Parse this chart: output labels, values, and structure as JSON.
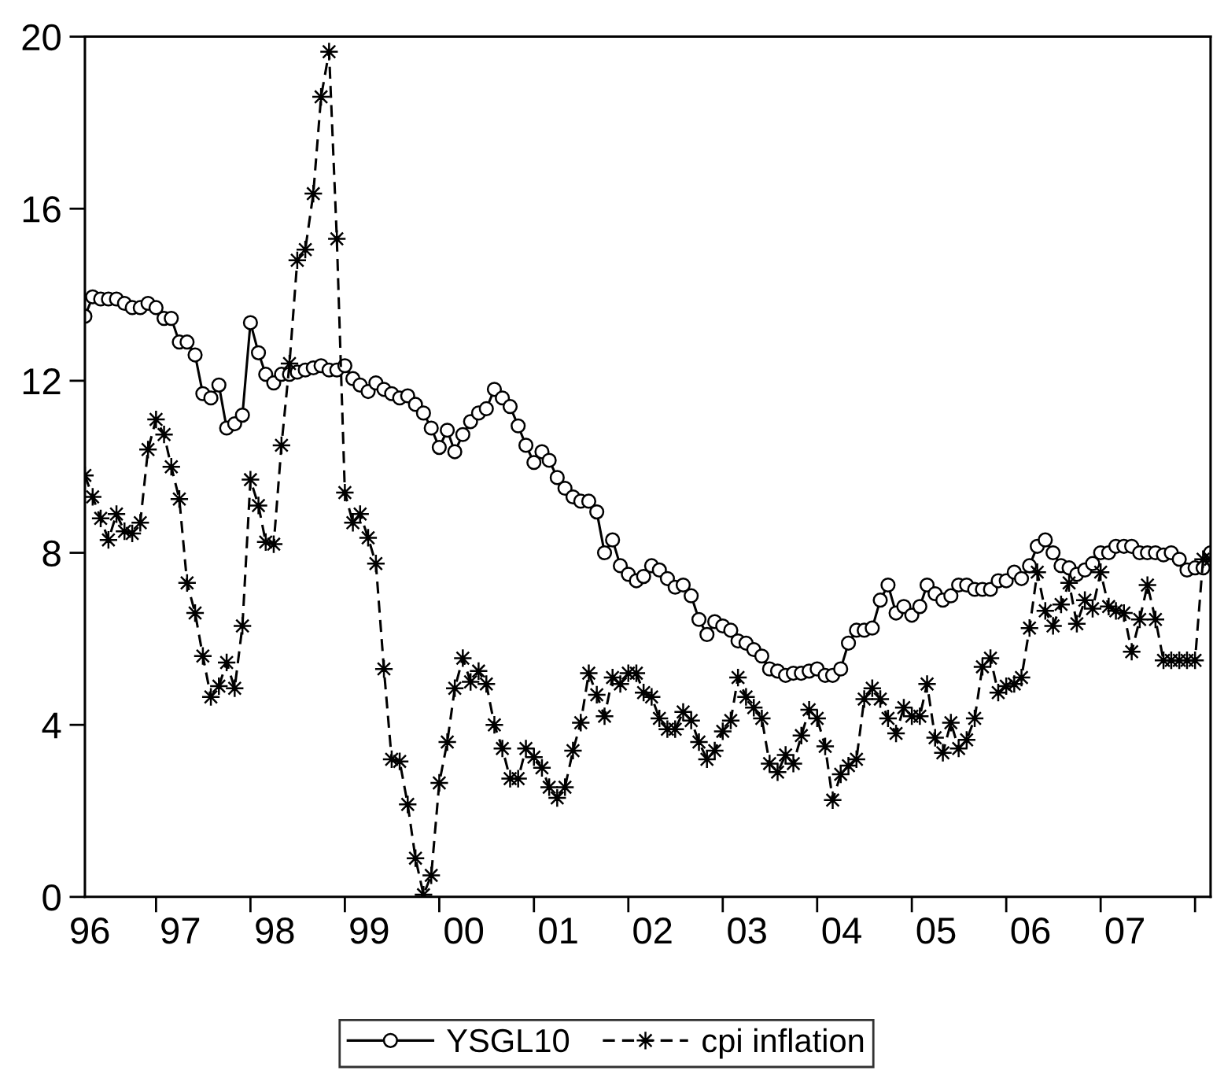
{
  "chart_data": {
    "type": "line",
    "x": [
      "1996-04",
      "1996-05",
      "1996-06",
      "1996-07",
      "1996-08",
      "1996-09",
      "1996-10",
      "1996-11",
      "1996-12",
      "1997-01",
      "1997-02",
      "1997-03",
      "1997-04",
      "1997-05",
      "1997-06",
      "1997-07",
      "1997-08",
      "1997-09",
      "1997-10",
      "1997-11",
      "1997-12",
      "1998-01",
      "1998-02",
      "1998-03",
      "1998-04",
      "1998-05",
      "1998-06",
      "1998-07",
      "1998-08",
      "1998-09",
      "1998-10",
      "1998-11",
      "1998-12",
      "1999-01",
      "1999-02",
      "1999-03",
      "1999-04",
      "1999-05",
      "1999-06",
      "1999-07",
      "1999-08",
      "1999-09",
      "1999-10",
      "1999-11",
      "1999-12",
      "2000-01",
      "2000-02",
      "2000-03",
      "2000-04",
      "2000-05",
      "2000-06",
      "2000-07",
      "2000-08",
      "2000-09",
      "2000-10",
      "2000-11",
      "2000-12",
      "2001-01",
      "2001-02",
      "2001-03",
      "2001-04",
      "2001-05",
      "2001-06",
      "2001-07",
      "2001-08",
      "2001-09",
      "2001-10",
      "2001-11",
      "2001-12",
      "2002-01",
      "2002-02",
      "2002-03",
      "2002-04",
      "2002-05",
      "2002-06",
      "2002-07",
      "2002-08",
      "2002-09",
      "2002-10",
      "2002-11",
      "2002-12",
      "2003-01",
      "2003-02",
      "2003-03",
      "2003-04",
      "2003-05",
      "2003-06",
      "2003-07",
      "2003-08",
      "2003-09",
      "2003-10",
      "2003-11",
      "2003-12",
      "2004-01",
      "2004-02",
      "2004-03",
      "2004-04",
      "2004-05",
      "2004-06",
      "2004-07",
      "2004-08",
      "2004-09",
      "2004-10",
      "2004-11",
      "2004-12",
      "2005-01",
      "2005-02",
      "2005-03",
      "2005-04",
      "2005-05",
      "2005-06",
      "2005-07",
      "2005-08",
      "2005-09",
      "2005-10",
      "2005-11",
      "2005-12",
      "2006-01",
      "2006-02",
      "2006-03",
      "2006-04",
      "2006-05",
      "2006-06",
      "2006-07",
      "2006-08",
      "2006-09",
      "2006-10",
      "2006-11",
      "2006-12",
      "2007-01",
      "2007-02",
      "2007-03",
      "2007-04",
      "2007-05",
      "2007-06",
      "2007-07",
      "2007-08",
      "2007-09",
      "2007-10",
      "2007-11",
      "2007-12",
      "2008-01",
      "2008-02",
      "2008-03"
    ],
    "series": [
      {
        "name": "YSGL10",
        "color": "#000000",
        "marker": "circle",
        "line_style": "solid",
        "values": [
          13.5,
          13.95,
          13.9,
          13.9,
          13.9,
          13.8,
          13.7,
          13.7,
          13.8,
          13.7,
          13.45,
          13.45,
          12.9,
          12.9,
          12.6,
          11.7,
          11.6,
          11.9,
          10.9,
          11.0,
          11.2,
          13.35,
          12.65,
          12.15,
          11.95,
          12.15,
          12.15,
          12.2,
          12.25,
          12.3,
          12.35,
          12.25,
          12.25,
          12.35,
          12.05,
          11.9,
          11.75,
          11.95,
          11.8,
          11.7,
          11.6,
          11.65,
          11.45,
          11.25,
          10.9,
          10.45,
          10.85,
          10.35,
          10.75,
          11.05,
          11.25,
          11.35,
          11.8,
          11.6,
          11.4,
          10.95,
          10.5,
          10.1,
          10.35,
          10.15,
          9.75,
          9.5,
          9.3,
          9.2,
          9.2,
          8.95,
          8.0,
          8.3,
          7.7,
          7.5,
          7.35,
          7.45,
          7.7,
          7.6,
          7.4,
          7.2,
          7.25,
          7.0,
          6.45,
          6.1,
          6.4,
          6.3,
          6.2,
          5.95,
          5.9,
          5.75,
          5.6,
          5.3,
          5.25,
          5.15,
          5.2,
          5.2,
          5.25,
          5.3,
          5.15,
          5.15,
          5.3,
          5.9,
          6.2,
          6.2,
          6.25,
          6.9,
          7.25,
          6.6,
          6.75,
          6.55,
          6.75,
          7.25,
          7.05,
          6.9,
          7.0,
          7.25,
          7.25,
          7.15,
          7.15,
          7.15,
          7.35,
          7.35,
          7.55,
          7.4,
          7.7,
          8.15,
          8.3,
          8.0,
          7.7,
          7.65,
          7.5,
          7.6,
          7.75,
          8.0,
          8.0,
          8.15,
          8.15,
          8.15,
          8.0,
          8.0,
          8.0,
          7.95,
          8.0,
          7.85,
          7.6,
          7.65,
          7.65,
          8.0
        ]
      },
      {
        "name": "cpi inflation",
        "color": "#000000",
        "marker": "star",
        "line_style": "dashed",
        "values": [
          9.8,
          9.3,
          8.8,
          8.3,
          8.9,
          8.5,
          8.45,
          8.7,
          10.4,
          11.1,
          10.75,
          10.0,
          9.25,
          7.3,
          6.6,
          5.6,
          4.65,
          4.9,
          5.45,
          4.85,
          6.3,
          9.7,
          9.1,
          8.25,
          8.2,
          10.5,
          12.4,
          14.8,
          15.05,
          16.35,
          18.6,
          19.65,
          15.3,
          9.4,
          8.7,
          8.9,
          8.35,
          7.75,
          5.3,
          3.2,
          3.15,
          2.15,
          0.9,
          0.05,
          0.5,
          2.65,
          3.6,
          4.85,
          5.55,
          5.0,
          5.25,
          4.95,
          4.0,
          3.45,
          2.75,
          2.75,
          3.45,
          3.25,
          3.0,
          2.55,
          2.3,
          2.55,
          3.4,
          4.05,
          5.2,
          4.7,
          4.2,
          5.1,
          4.95,
          5.2,
          5.2,
          4.75,
          4.65,
          4.15,
          3.9,
          3.9,
          4.3,
          4.1,
          3.6,
          3.2,
          3.4,
          3.85,
          4.1,
          5.1,
          4.65,
          4.4,
          4.15,
          3.1,
          2.9,
          3.3,
          3.1,
          3.75,
          4.35,
          4.15,
          3.5,
          2.25,
          2.85,
          3.05,
          3.2,
          4.6,
          4.85,
          4.6,
          4.15,
          3.8,
          4.4,
          4.2,
          4.2,
          4.95,
          3.7,
          3.35,
          4.05,
          3.45,
          3.65,
          4.15,
          5.35,
          5.55,
          4.75,
          4.9,
          4.95,
          5.1,
          6.25,
          7.55,
          6.65,
          6.3,
          6.8,
          7.3,
          6.35,
          6.9,
          6.7,
          7.55,
          6.75,
          6.65,
          6.6,
          5.7,
          6.45,
          7.25,
          6.45,
          5.5,
          5.5,
          5.5,
          5.5,
          5.5,
          7.85,
          7.85
        ]
      }
    ],
    "xlim": [
      "1996-04-01",
      "2008-03-01"
    ],
    "xticks": [
      {
        "value": "1996-04-20",
        "label": "96"
      },
      {
        "value": "1997-04-05",
        "label": "97"
      },
      {
        "value": "1998-04-05",
        "label": "98"
      },
      {
        "value": "1999-04-05",
        "label": "99"
      },
      {
        "value": "2000-04-05",
        "label": "00"
      },
      {
        "value": "2001-04-05",
        "label": "01"
      },
      {
        "value": "2002-04-05",
        "label": "02"
      },
      {
        "value": "2003-04-05",
        "label": "03"
      },
      {
        "value": "2004-04-05",
        "label": "04"
      },
      {
        "value": "2005-04-05",
        "label": "05"
      },
      {
        "value": "2006-04-05",
        "label": "06"
      },
      {
        "value": "2007-04-05",
        "label": "07"
      },
      {
        "value": "1997-01-01",
        "label": null
      },
      {
        "value": "1998-01-01",
        "label": null
      },
      {
        "value": "1999-01-01",
        "label": null
      },
      {
        "value": "2000-01-01",
        "label": null
      },
      {
        "value": "2001-01-01",
        "label": null
      },
      {
        "value": "2002-01-01",
        "label": null
      },
      {
        "value": "2003-01-01",
        "label": null
      },
      {
        "value": "2004-01-01",
        "label": null
      },
      {
        "value": "2005-01-01",
        "label": null
      },
      {
        "value": "2006-01-01",
        "label": null
      },
      {
        "value": "2007-01-01",
        "label": null
      },
      {
        "value": "2008-01-01",
        "label": null
      }
    ],
    "ylim": [
      0,
      20
    ],
    "yticks": [
      0,
      4,
      8,
      12,
      16,
      20
    ],
    "grid": false,
    "legend": "bottom"
  }
}
